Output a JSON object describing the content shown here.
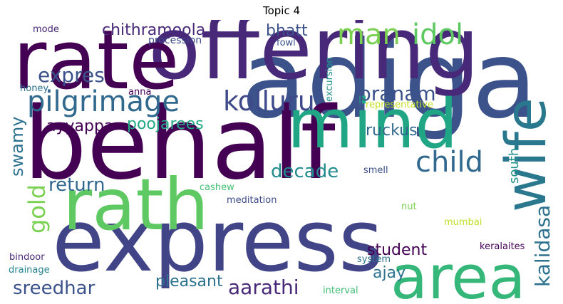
{
  "title": "Topic 4",
  "words": [
    {
      "text": "adiga",
      "color": "#3b528b"
    },
    {
      "text": "offering",
      "color": "#482878"
    },
    {
      "text": "behalf",
      "color": "#440154"
    },
    {
      "text": "express",
      "color": "#414487"
    },
    {
      "text": "rate",
      "color": "#440154"
    },
    {
      "text": "mind",
      "color": "#21a685"
    },
    {
      "text": "rath",
      "color": "#5ec962"
    },
    {
      "text": "area",
      "color": "#35b779"
    },
    {
      "text": "wife",
      "color": "#2a788e"
    },
    {
      "text": "pilgrimage",
      "color": "#31688e"
    },
    {
      "text": "kolluru",
      "color": "#3e4a89"
    },
    {
      "text": "man",
      "color": "#7ad151"
    },
    {
      "text": "idol",
      "color": "#5ec962"
    },
    {
      "text": "child",
      "color": "#31688e"
    },
    {
      "text": "pranam",
      "color": "#3b528b"
    },
    {
      "text": "expres",
      "color": "#3b528b"
    },
    {
      "text": "chithramoola",
      "color": "#482878"
    },
    {
      "text": "return",
      "color": "#31688e"
    },
    {
      "text": "decade",
      "color": "#228c8d"
    },
    {
      "text": "gold",
      "color": "#7ad151"
    },
    {
      "text": "kalidasa",
      "color": "#2c718e"
    },
    {
      "text": "swamy",
      "color": "#2c718e"
    },
    {
      "text": "sreedhar",
      "color": "#3b528b"
    },
    {
      "text": "aarathi",
      "color": "#482878"
    },
    {
      "text": "ayyappa",
      "color": "#440154"
    },
    {
      "text": "poojarees",
      "color": "#22a884"
    },
    {
      "text": "ruckus",
      "color": "#31688e"
    },
    {
      "text": "bhatt",
      "color": "#3b528b"
    },
    {
      "text": "pleasant",
      "color": "#2c718e"
    },
    {
      "text": "student",
      "color": "#440154"
    },
    {
      "text": "ajay",
      "color": "#2c718e"
    },
    {
      "text": "south",
      "color": "#21918c"
    },
    {
      "text": "procession",
      "color": "#3e4a89"
    },
    {
      "text": "mode",
      "color": "#482878"
    },
    {
      "text": "fowl",
      "color": "#3b528b"
    },
    {
      "text": "excursion",
      "color": "#21918c"
    },
    {
      "text": "honey",
      "color": "#2c718e"
    },
    {
      "text": "anna",
      "color": "#440154"
    },
    {
      "text": "representative",
      "color": "#c2df23"
    },
    {
      "text": "smell",
      "color": "#3b528b"
    },
    {
      "text": "cashew",
      "color": "#42be71"
    },
    {
      "text": "meditation",
      "color": "#3e4a89"
    },
    {
      "text": "nut",
      "color": "#7ad151"
    },
    {
      "text": "mumbai",
      "color": "#bddf26"
    },
    {
      "text": "bindoor",
      "color": "#482878"
    },
    {
      "text": "drainage",
      "color": "#26828e"
    },
    {
      "text": "keralaites",
      "color": "#440154"
    },
    {
      "text": "system",
      "color": "#2c718e"
    },
    {
      "text": "interval",
      "color": "#3dbc74"
    }
  ]
}
